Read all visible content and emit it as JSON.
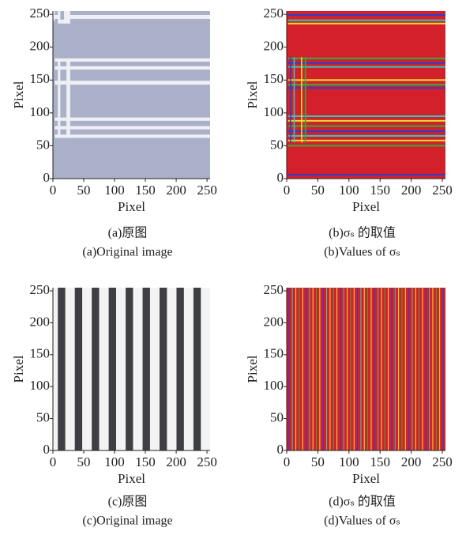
{
  "chart_data": [
    {
      "type": "image",
      "xlabel": "Pixel",
      "ylabel": "Pixel",
      "xlim": [
        0,
        255
      ],
      "ylim": [
        0,
        255
      ],
      "xticks": [
        0,
        50,
        100,
        150,
        200,
        250
      ],
      "yticks": [
        0,
        50,
        100,
        150,
        200,
        250
      ],
      "caption_zh": "(a)原图",
      "caption_en": "(a)Original image"
    },
    {
      "type": "image",
      "xlabel": "Pixel",
      "ylabel": "Pixel",
      "xlim": [
        0,
        255
      ],
      "ylim": [
        0,
        255
      ],
      "xticks": [
        0,
        50,
        100,
        150,
        200,
        250
      ],
      "yticks": [
        0,
        50,
        100,
        150,
        200,
        250
      ],
      "caption_zh": "(b)σₛ 的取值",
      "caption_en": "(b)Values of σₛ"
    },
    {
      "type": "image",
      "xlabel": "Pixel",
      "ylabel": "Pixel",
      "xlim": [
        0,
        255
      ],
      "ylim": [
        0,
        255
      ],
      "xticks": [
        0,
        50,
        100,
        150,
        200,
        250
      ],
      "yticks": [
        0,
        50,
        100,
        150,
        200,
        250
      ],
      "caption_zh": "(c)原图",
      "caption_en": "(c)Original image"
    },
    {
      "type": "image",
      "xlabel": "Pixel",
      "ylabel": "Pixel",
      "xlim": [
        0,
        255
      ],
      "ylim": [
        0,
        255
      ],
      "xticks": [
        0,
        50,
        100,
        150,
        200,
        250
      ],
      "yticks": [
        0,
        50,
        100,
        150,
        200,
        250
      ],
      "caption_zh": "(d)σₛ 的取值",
      "caption_en": "(d)Values of σₛ"
    }
  ]
}
